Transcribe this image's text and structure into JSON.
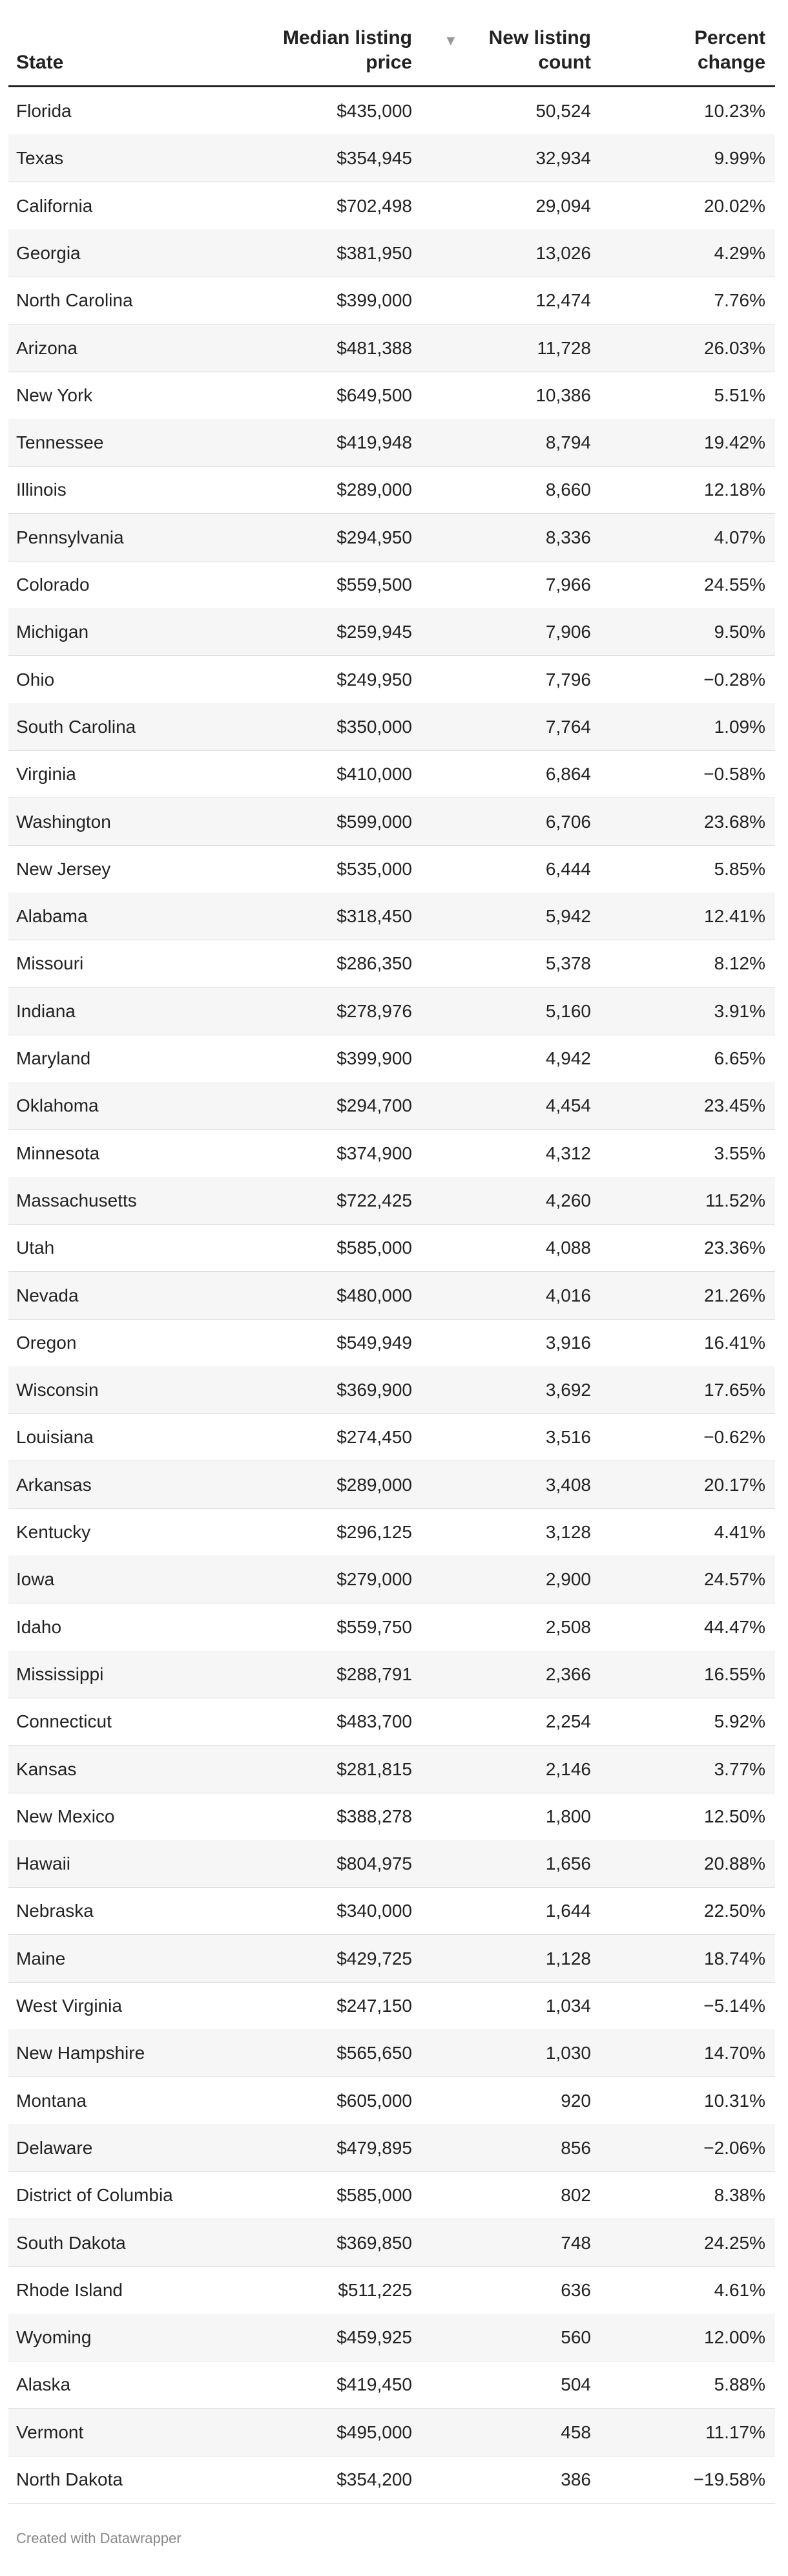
{
  "table": {
    "columns": [
      "State",
      "Median listing price",
      "New listing count",
      "Percent change"
    ],
    "rows": [
      [
        "Florida",
        "$435,000",
        "50,524",
        "10.23%"
      ],
      [
        "Texas",
        "$354,945",
        "32,934",
        "9.99%"
      ],
      [
        "California",
        "$702,498",
        "29,094",
        "20.02%"
      ],
      [
        "Georgia",
        "$381,950",
        "13,026",
        "4.29%"
      ],
      [
        "North Carolina",
        "$399,000",
        "12,474",
        "7.76%"
      ],
      [
        "Arizona",
        "$481,388",
        "11,728",
        "26.03%"
      ],
      [
        "New York",
        "$649,500",
        "10,386",
        "5.51%"
      ],
      [
        "Tennessee",
        "$419,948",
        "8,794",
        "19.42%"
      ],
      [
        "Illinois",
        "$289,000",
        "8,660",
        "12.18%"
      ],
      [
        "Pennsylvania",
        "$294,950",
        "8,336",
        "4.07%"
      ],
      [
        "Colorado",
        "$559,500",
        "7,966",
        "24.55%"
      ],
      [
        "Michigan",
        "$259,945",
        "7,906",
        "9.50%"
      ],
      [
        "Ohio",
        "$249,950",
        "7,796",
        "−0.28%"
      ],
      [
        "South Carolina",
        "$350,000",
        "7,764",
        "1.09%"
      ],
      [
        "Virginia",
        "$410,000",
        "6,864",
        "−0.58%"
      ],
      [
        "Washington",
        "$599,000",
        "6,706",
        "23.68%"
      ],
      [
        "New Jersey",
        "$535,000",
        "6,444",
        "5.85%"
      ],
      [
        "Alabama",
        "$318,450",
        "5,942",
        "12.41%"
      ],
      [
        "Missouri",
        "$286,350",
        "5,378",
        "8.12%"
      ],
      [
        "Indiana",
        "$278,976",
        "5,160",
        "3.91%"
      ],
      [
        "Maryland",
        "$399,900",
        "4,942",
        "6.65%"
      ],
      [
        "Oklahoma",
        "$294,700",
        "4,454",
        "23.45%"
      ],
      [
        "Minnesota",
        "$374,900",
        "4,312",
        "3.55%"
      ],
      [
        "Massachusetts",
        "$722,425",
        "4,260",
        "11.52%"
      ],
      [
        "Utah",
        "$585,000",
        "4,088",
        "23.36%"
      ],
      [
        "Nevada",
        "$480,000",
        "4,016",
        "21.26%"
      ],
      [
        "Oregon",
        "$549,949",
        "3,916",
        "16.41%"
      ],
      [
        "Wisconsin",
        "$369,900",
        "3,692",
        "17.65%"
      ],
      [
        "Louisiana",
        "$274,450",
        "3,516",
        "−0.62%"
      ],
      [
        "Arkansas",
        "$289,000",
        "3,408",
        "20.17%"
      ],
      [
        "Kentucky",
        "$296,125",
        "3,128",
        "4.41%"
      ],
      [
        "Iowa",
        "$279,000",
        "2,900",
        "24.57%"
      ],
      [
        "Idaho",
        "$559,750",
        "2,508",
        "44.47%"
      ],
      [
        "Mississippi",
        "$288,791",
        "2,366",
        "16.55%"
      ],
      [
        "Connecticut",
        "$483,700",
        "2,254",
        "5.92%"
      ],
      [
        "Kansas",
        "$281,815",
        "2,146",
        "3.77%"
      ],
      [
        "New Mexico",
        "$388,278",
        "1,800",
        "12.50%"
      ],
      [
        "Hawaii",
        "$804,975",
        "1,656",
        "20.88%"
      ],
      [
        "Nebraska",
        "$340,000",
        "1,644",
        "22.50%"
      ],
      [
        "Maine",
        "$429,725",
        "1,128",
        "18.74%"
      ],
      [
        "West Virginia",
        "$247,150",
        "1,034",
        "−5.14%"
      ],
      [
        "New Hampshire",
        "$565,650",
        "1,030",
        "14.70%"
      ],
      [
        "Montana",
        "$605,000",
        "920",
        "10.31%"
      ],
      [
        "Delaware",
        "$479,895",
        "856",
        "−2.06%"
      ],
      [
        "District of Columbia",
        "$585,000",
        "802",
        "8.38%"
      ],
      [
        "South Dakota",
        "$369,850",
        "748",
        "24.25%"
      ],
      [
        "Rhode Island",
        "$511,225",
        "636",
        "4.61%"
      ],
      [
        "Wyoming",
        "$459,925",
        "560",
        "12.00%"
      ],
      [
        "Alaska",
        "$419,450",
        "504",
        "5.88%"
      ],
      [
        "Vermont",
        "$495,000",
        "458",
        "11.17%"
      ],
      [
        "North Dakota",
        "$354,200",
        "386",
        "−19.58%"
      ]
    ]
  },
  "footer": "Created with Datawrapper"
}
